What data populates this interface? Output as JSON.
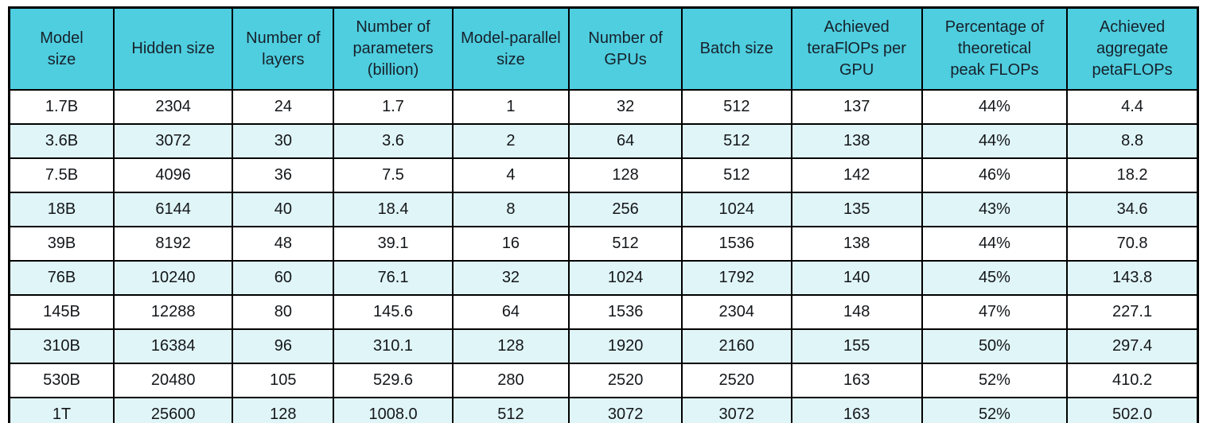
{
  "chart_data": {
    "type": "table",
    "columns": [
      "Model\nsize",
      "Hidden size",
      "Number of\nlayers",
      "Number of\nparameters\n(billion)",
      "Model-parallel\nsize",
      "Number of\nGPUs",
      "Batch size",
      "Achieved\nteraFlOPs per\nGPU",
      "Percentage of\ntheoretical\npeak FLOPs",
      "Achieved\naggregate\npetaFLOPs"
    ],
    "rows": [
      [
        "1.7B",
        "2304",
        "24",
        "1.7",
        "1",
        "32",
        "512",
        "137",
        "44%",
        "4.4"
      ],
      [
        "3.6B",
        "3072",
        "30",
        "3.6",
        "2",
        "64",
        "512",
        "138",
        "44%",
        "8.8"
      ],
      [
        "7.5B",
        "4096",
        "36",
        "7.5",
        "4",
        "128",
        "512",
        "142",
        "46%",
        "18.2"
      ],
      [
        "18B",
        "6144",
        "40",
        "18.4",
        "8",
        "256",
        "1024",
        "135",
        "43%",
        "34.6"
      ],
      [
        "39B",
        "8192",
        "48",
        "39.1",
        "16",
        "512",
        "1536",
        "138",
        "44%",
        "70.8"
      ],
      [
        "76B",
        "10240",
        "60",
        "76.1",
        "32",
        "1024",
        "1792",
        "140",
        "45%",
        "143.8"
      ],
      [
        "145B",
        "12288",
        "80",
        "145.6",
        "64",
        "1536",
        "2304",
        "148",
        "47%",
        "227.1"
      ],
      [
        "310B",
        "16384",
        "96",
        "310.1",
        "128",
        "1920",
        "2160",
        "155",
        "50%",
        "297.4"
      ],
      [
        "530B",
        "20480",
        "105",
        "529.6",
        "280",
        "2520",
        "2520",
        "163",
        "52%",
        "410.2"
      ],
      [
        "1T",
        "25600",
        "128",
        "1008.0",
        "512",
        "3072",
        "3072",
        "163",
        "52%",
        "502.0"
      ]
    ],
    "colors": {
      "header_bg": "#4ECEDF",
      "header_text": "#17212B",
      "row_even_bg": "#FFFFFF",
      "row_odd_bg": "#E0F5F8",
      "cell_text": "#14171A",
      "border": "#000000"
    }
  }
}
